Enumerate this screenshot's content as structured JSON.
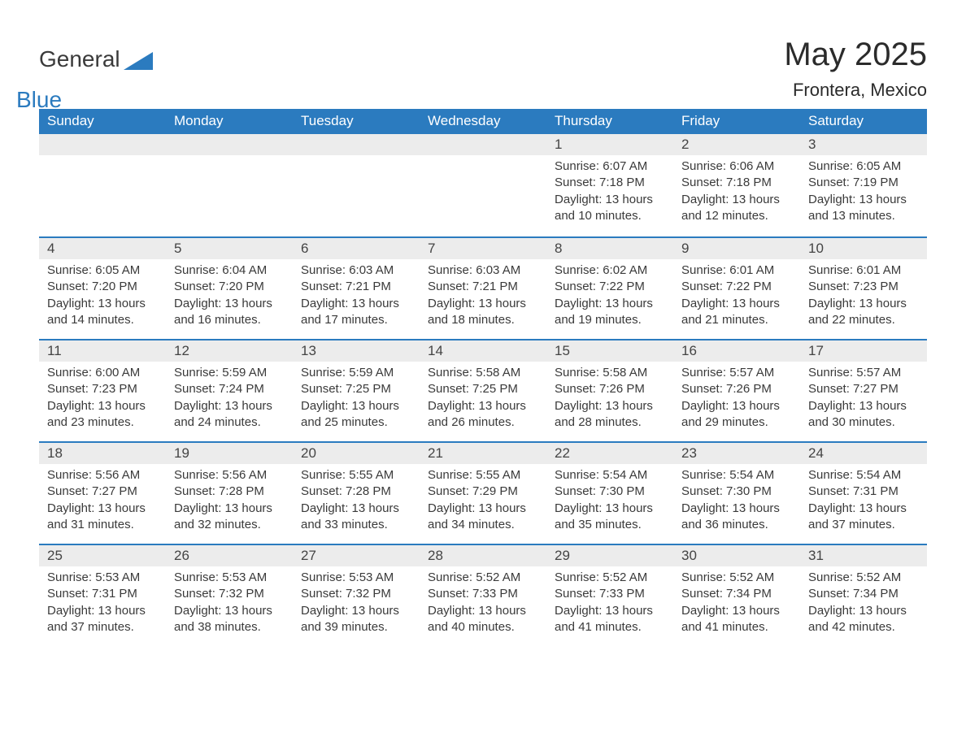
{
  "brand": {
    "word1": "General",
    "word2": "Blue",
    "logo_fill": "#2b7bbf",
    "text_color": "#3a3a3a",
    "accent_color": "#2b7bbf"
  },
  "header": {
    "title": "May 2025",
    "location": "Frontera, Mexico",
    "title_fontsize": 40,
    "location_fontsize": 22
  },
  "style": {
    "header_bg": "#2b7bbf",
    "header_text": "#ffffff",
    "daynum_bg": "#ececec",
    "week_border": "#2b7bbf",
    "body_text": "#3a3a3a",
    "page_bg": "#ffffff",
    "header_fontsize": 17,
    "body_fontsize": 15
  },
  "day_labels": [
    "Sunday",
    "Monday",
    "Tuesday",
    "Wednesday",
    "Thursday",
    "Friday",
    "Saturday"
  ],
  "weeks": [
    [
      {
        "n": "",
        "sr": "",
        "ss": "",
        "dl": ""
      },
      {
        "n": "",
        "sr": "",
        "ss": "",
        "dl": ""
      },
      {
        "n": "",
        "sr": "",
        "ss": "",
        "dl": ""
      },
      {
        "n": "",
        "sr": "",
        "ss": "",
        "dl": ""
      },
      {
        "n": "1",
        "sr": "Sunrise: 6:07 AM",
        "ss": "Sunset: 7:18 PM",
        "dl": "Daylight: 13 hours and 10 minutes."
      },
      {
        "n": "2",
        "sr": "Sunrise: 6:06 AM",
        "ss": "Sunset: 7:18 PM",
        "dl": "Daylight: 13 hours and 12 minutes."
      },
      {
        "n": "3",
        "sr": "Sunrise: 6:05 AM",
        "ss": "Sunset: 7:19 PM",
        "dl": "Daylight: 13 hours and 13 minutes."
      }
    ],
    [
      {
        "n": "4",
        "sr": "Sunrise: 6:05 AM",
        "ss": "Sunset: 7:20 PM",
        "dl": "Daylight: 13 hours and 14 minutes."
      },
      {
        "n": "5",
        "sr": "Sunrise: 6:04 AM",
        "ss": "Sunset: 7:20 PM",
        "dl": "Daylight: 13 hours and 16 minutes."
      },
      {
        "n": "6",
        "sr": "Sunrise: 6:03 AM",
        "ss": "Sunset: 7:21 PM",
        "dl": "Daylight: 13 hours and 17 minutes."
      },
      {
        "n": "7",
        "sr": "Sunrise: 6:03 AM",
        "ss": "Sunset: 7:21 PM",
        "dl": "Daylight: 13 hours and 18 minutes."
      },
      {
        "n": "8",
        "sr": "Sunrise: 6:02 AM",
        "ss": "Sunset: 7:22 PM",
        "dl": "Daylight: 13 hours and 19 minutes."
      },
      {
        "n": "9",
        "sr": "Sunrise: 6:01 AM",
        "ss": "Sunset: 7:22 PM",
        "dl": "Daylight: 13 hours and 21 minutes."
      },
      {
        "n": "10",
        "sr": "Sunrise: 6:01 AM",
        "ss": "Sunset: 7:23 PM",
        "dl": "Daylight: 13 hours and 22 minutes."
      }
    ],
    [
      {
        "n": "11",
        "sr": "Sunrise: 6:00 AM",
        "ss": "Sunset: 7:23 PM",
        "dl": "Daylight: 13 hours and 23 minutes."
      },
      {
        "n": "12",
        "sr": "Sunrise: 5:59 AM",
        "ss": "Sunset: 7:24 PM",
        "dl": "Daylight: 13 hours and 24 minutes."
      },
      {
        "n": "13",
        "sr": "Sunrise: 5:59 AM",
        "ss": "Sunset: 7:25 PM",
        "dl": "Daylight: 13 hours and 25 minutes."
      },
      {
        "n": "14",
        "sr": "Sunrise: 5:58 AM",
        "ss": "Sunset: 7:25 PM",
        "dl": "Daylight: 13 hours and 26 minutes."
      },
      {
        "n": "15",
        "sr": "Sunrise: 5:58 AM",
        "ss": "Sunset: 7:26 PM",
        "dl": "Daylight: 13 hours and 28 minutes."
      },
      {
        "n": "16",
        "sr": "Sunrise: 5:57 AM",
        "ss": "Sunset: 7:26 PM",
        "dl": "Daylight: 13 hours and 29 minutes."
      },
      {
        "n": "17",
        "sr": "Sunrise: 5:57 AM",
        "ss": "Sunset: 7:27 PM",
        "dl": "Daylight: 13 hours and 30 minutes."
      }
    ],
    [
      {
        "n": "18",
        "sr": "Sunrise: 5:56 AM",
        "ss": "Sunset: 7:27 PM",
        "dl": "Daylight: 13 hours and 31 minutes."
      },
      {
        "n": "19",
        "sr": "Sunrise: 5:56 AM",
        "ss": "Sunset: 7:28 PM",
        "dl": "Daylight: 13 hours and 32 minutes."
      },
      {
        "n": "20",
        "sr": "Sunrise: 5:55 AM",
        "ss": "Sunset: 7:28 PM",
        "dl": "Daylight: 13 hours and 33 minutes."
      },
      {
        "n": "21",
        "sr": "Sunrise: 5:55 AM",
        "ss": "Sunset: 7:29 PM",
        "dl": "Daylight: 13 hours and 34 minutes."
      },
      {
        "n": "22",
        "sr": "Sunrise: 5:54 AM",
        "ss": "Sunset: 7:30 PM",
        "dl": "Daylight: 13 hours and 35 minutes."
      },
      {
        "n": "23",
        "sr": "Sunrise: 5:54 AM",
        "ss": "Sunset: 7:30 PM",
        "dl": "Daylight: 13 hours and 36 minutes."
      },
      {
        "n": "24",
        "sr": "Sunrise: 5:54 AM",
        "ss": "Sunset: 7:31 PM",
        "dl": "Daylight: 13 hours and 37 minutes."
      }
    ],
    [
      {
        "n": "25",
        "sr": "Sunrise: 5:53 AM",
        "ss": "Sunset: 7:31 PM",
        "dl": "Daylight: 13 hours and 37 minutes."
      },
      {
        "n": "26",
        "sr": "Sunrise: 5:53 AM",
        "ss": "Sunset: 7:32 PM",
        "dl": "Daylight: 13 hours and 38 minutes."
      },
      {
        "n": "27",
        "sr": "Sunrise: 5:53 AM",
        "ss": "Sunset: 7:32 PM",
        "dl": "Daylight: 13 hours and 39 minutes."
      },
      {
        "n": "28",
        "sr": "Sunrise: 5:52 AM",
        "ss": "Sunset: 7:33 PM",
        "dl": "Daylight: 13 hours and 40 minutes."
      },
      {
        "n": "29",
        "sr": "Sunrise: 5:52 AM",
        "ss": "Sunset: 7:33 PM",
        "dl": "Daylight: 13 hours and 41 minutes."
      },
      {
        "n": "30",
        "sr": "Sunrise: 5:52 AM",
        "ss": "Sunset: 7:34 PM",
        "dl": "Daylight: 13 hours and 41 minutes."
      },
      {
        "n": "31",
        "sr": "Sunrise: 5:52 AM",
        "ss": "Sunset: 7:34 PM",
        "dl": "Daylight: 13 hours and 42 minutes."
      }
    ]
  ]
}
